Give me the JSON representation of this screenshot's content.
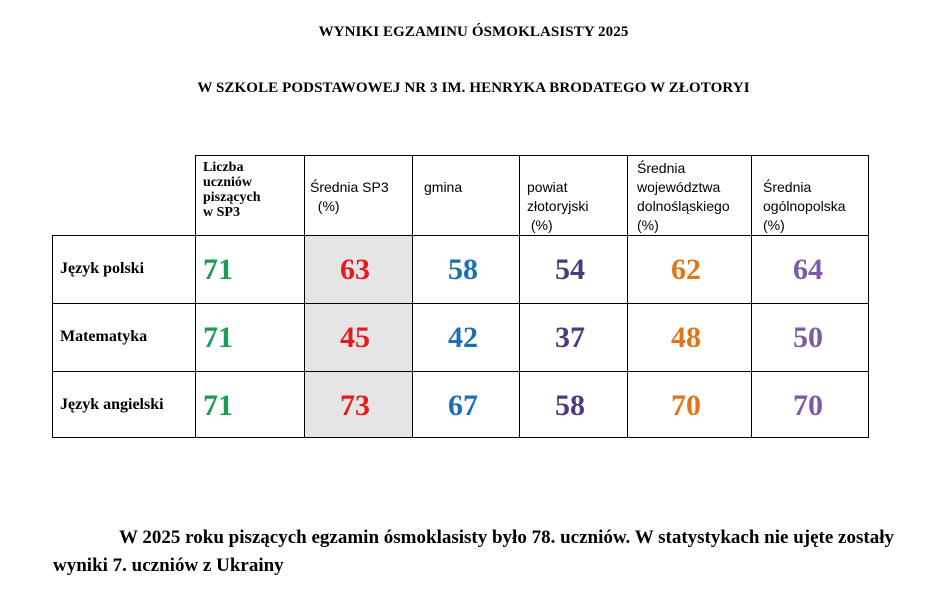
{
  "document": {
    "title": "WYNIKI EGZAMINU ÓSMOKLASISTY 2025",
    "subtitle": "W SZKOLE PODSTAWOWEJ NR 3 IM. HENRYKA BRODATEGO W ZŁOTORYI",
    "note": "W 2025 roku piszących egzamin ósmoklasisty było 78. uczniów. W statystykach nie ujęte zostały wyniki 7. uczniów z Ukrainy"
  },
  "colors": {
    "count": "#1a9e54",
    "school": "#e8191f",
    "gmina": "#1c6fb5",
    "powiat": "#4d3a7c",
    "wojewodztwo": "#e07618",
    "kraj": "#7b5aa6",
    "highlight_bg": "#e6e5e6"
  },
  "table": {
    "headers": {
      "count": [
        "Liczba",
        "uczniów",
        "piszących",
        "w SP3"
      ],
      "school": [
        "Średnia SP3",
        "  (%)"
      ],
      "gmina": [
        "gmina"
      ],
      "powiat": [
        "powiat",
        "złotoryjski",
        " (%)"
      ],
      "wojewodztwo": [
        "Średnia",
        "województwa",
        "dolnośląskiego",
        "(%)"
      ],
      "kraj": [
        "Średnia",
        "ogólnopolska",
        "(%)"
      ]
    },
    "rows": [
      {
        "subject": "Język polski",
        "count": "71",
        "school": "63",
        "gmina": "58",
        "powiat": "54",
        "wojewodztwo": "62",
        "kraj": "64"
      },
      {
        "subject": "Matematyka",
        "count": "71",
        "school": "45",
        "gmina": "42",
        "powiat": "37",
        "wojewodztwo": "48",
        "kraj": "50"
      },
      {
        "subject": "Język angielski",
        "count": "71",
        "school": "73",
        "gmina": "67",
        "powiat": "58",
        "wojewodztwo": "70",
        "kraj": "70"
      }
    ]
  }
}
